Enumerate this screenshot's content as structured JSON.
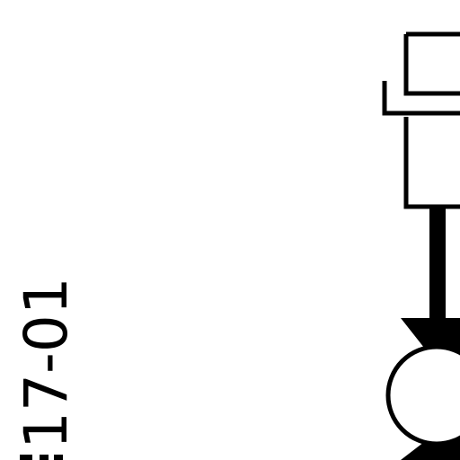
{
  "drawing": {
    "label": "17-01",
    "ink_color": "#000000",
    "background_color": "#ffffff"
  }
}
